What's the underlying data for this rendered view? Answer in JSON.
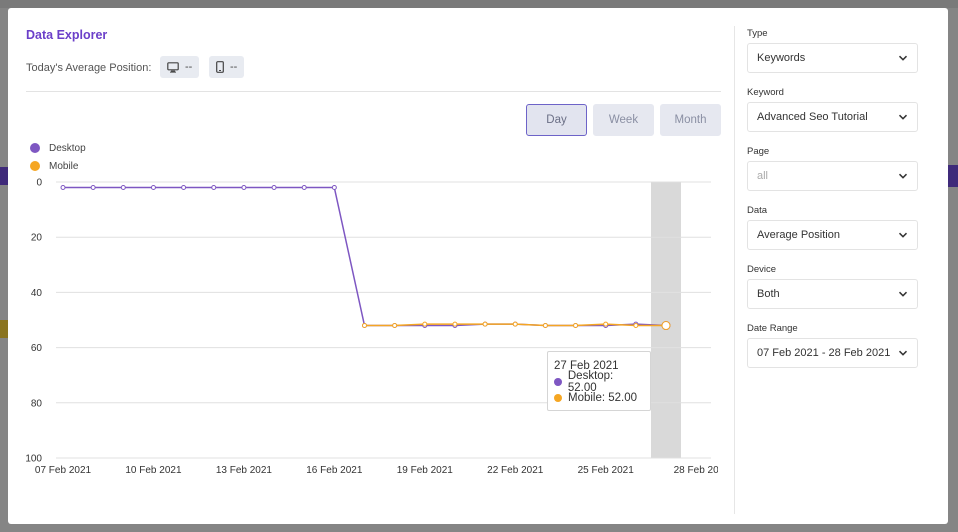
{
  "modal": {
    "title": "Data Explorer",
    "avg_position_label": "Today's Average Position:",
    "desktop_value": "--",
    "mobile_value": "--"
  },
  "range_buttons": [
    {
      "label": "Day",
      "active": true
    },
    {
      "label": "Week",
      "active": false
    },
    {
      "label": "Month",
      "active": false
    }
  ],
  "colors": {
    "accent": "#6b3fc9",
    "desktop": "#7e57c2",
    "mobile": "#f5a623",
    "highlight_band": "#d9d9d9",
    "grid": "#e0e0e0"
  },
  "tooltip": {
    "date": "27 Feb 2021",
    "desktop_label": "Desktop: 52.00",
    "mobile_label": "Mobile: 52.00"
  },
  "chart_data": {
    "type": "line",
    "legend_placement": "top-left",
    "grid": true,
    "y_reversed": true,
    "ylim": [
      0,
      100
    ],
    "yticks": [
      "0",
      "20",
      "40",
      "60",
      "80",
      "100"
    ],
    "xticks": [
      "07 Feb 2021",
      "10 Feb 2021",
      "13 Feb 2021",
      "16 Feb 2021",
      "19 Feb 2021",
      "22 Feb 2021",
      "25 Feb 2021",
      "28 Feb 20"
    ],
    "x": [
      "07 Feb 2021",
      "08 Feb 2021",
      "09 Feb 2021",
      "10 Feb 2021",
      "11 Feb 2021",
      "12 Feb 2021",
      "13 Feb 2021",
      "14 Feb 2021",
      "15 Feb 2021",
      "16 Feb 2021",
      "17 Feb 2021",
      "18 Feb 2021",
      "19 Feb 2021",
      "20 Feb 2021",
      "21 Feb 2021",
      "22 Feb 2021",
      "23 Feb 2021",
      "24 Feb 2021",
      "25 Feb 2021",
      "26 Feb 2021",
      "27 Feb 2021"
    ],
    "highlighted_x": "27 Feb 2021",
    "series": [
      {
        "name": "Desktop",
        "values": [
          2,
          2,
          2,
          2,
          2,
          2,
          2,
          2,
          2,
          2,
          52,
          52,
          52,
          52,
          51.5,
          51.5,
          52,
          52,
          52,
          51.5,
          52
        ]
      },
      {
        "name": "Mobile",
        "values": [
          null,
          null,
          null,
          null,
          null,
          null,
          null,
          null,
          null,
          null,
          52,
          52,
          51.5,
          51.5,
          51.5,
          51.5,
          52,
          52,
          51.5,
          52,
          52
        ]
      }
    ]
  },
  "sidebar": {
    "fields": [
      {
        "label": "Type",
        "value": "Keywords",
        "disabled": false
      },
      {
        "label": "Keyword",
        "value": "Advanced Seo Tutorial",
        "disabled": false
      },
      {
        "label": "Page",
        "value": "all",
        "disabled": true
      },
      {
        "label": "Data",
        "value": "Average Position",
        "disabled": false
      },
      {
        "label": "Device",
        "value": "Both",
        "disabled": false
      },
      {
        "label": "Date Range",
        "value": "07 Feb 2021 - 28 Feb 2021",
        "disabled": false
      }
    ]
  }
}
